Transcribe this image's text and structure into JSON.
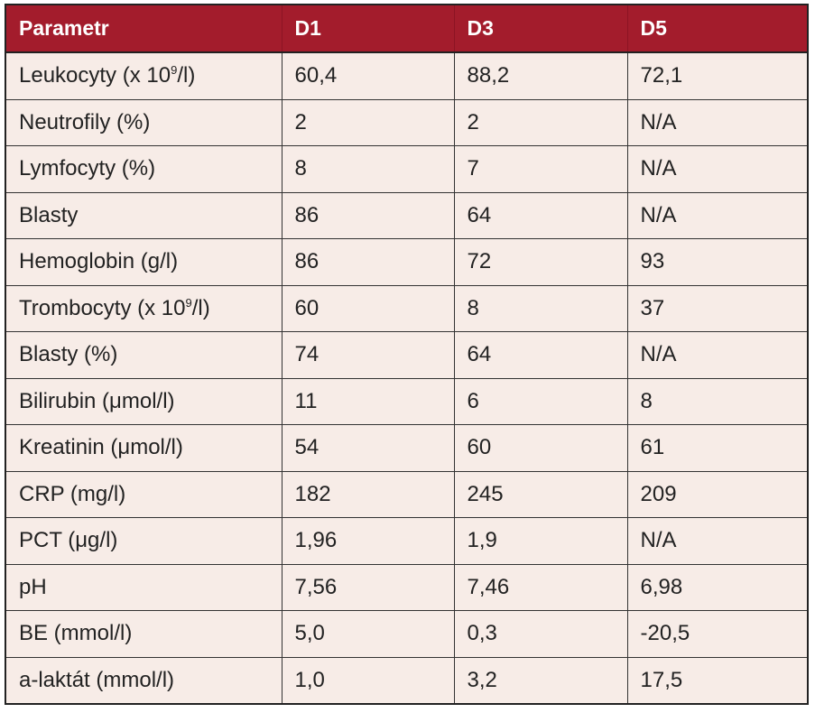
{
  "table": {
    "headers": [
      "Parametr",
      "D1",
      "D3",
      "D5"
    ],
    "rows": [
      {
        "label_pre": "Leukocyty (x 10",
        "label_sup": "9",
        "label_post": "/l)",
        "d1": "60,4",
        "d3": "88,2",
        "d5": "72,1"
      },
      {
        "label_pre": "Neutrofily (%)",
        "label_sup": "",
        "label_post": "",
        "d1": "2",
        "d3": "2",
        "d5": "N/A"
      },
      {
        "label_pre": "Lymfocyty (%)",
        "label_sup": "",
        "label_post": "",
        "d1": "8",
        "d3": "7",
        "d5": "N/A"
      },
      {
        "label_pre": "Blasty",
        "label_sup": "",
        "label_post": "",
        "d1": "86",
        "d3": "64",
        "d5": "N/A"
      },
      {
        "label_pre": "Hemoglobin (g/l)",
        "label_sup": "",
        "label_post": "",
        "d1": "86",
        "d3": "72",
        "d5": "93"
      },
      {
        "label_pre": "Trombocyty (x 10",
        "label_sup": "9",
        "label_post": "/l)",
        "d1": "60",
        "d3": "8",
        "d5": "37"
      },
      {
        "label_pre": "Blasty (%)",
        "label_sup": "",
        "label_post": "",
        "d1": "74",
        "d3": "64",
        "d5": "N/A"
      },
      {
        "label_pre": "Bilirubin (μmol/l)",
        "label_sup": "",
        "label_post": "",
        "d1": "11",
        "d3": "6",
        "d5": "8"
      },
      {
        "label_pre": "Kreatinin (μmol/l)",
        "label_sup": "",
        "label_post": "",
        "d1": "54",
        "d3": "60",
        "d5": "61"
      },
      {
        "label_pre": "CRP (mg/l)",
        "label_sup": "",
        "label_post": "",
        "d1": "182",
        "d3": "245",
        "d5": "209"
      },
      {
        "label_pre": "PCT (μg/l)",
        "label_sup": "",
        "label_post": "",
        "d1": "1,96",
        "d3": "1,9",
        "d5": "N/A"
      },
      {
        "label_pre": "pH",
        "label_sup": "",
        "label_post": "",
        "d1": "7,56",
        "d3": "7,46",
        "d5": "6,98"
      },
      {
        "label_pre": "BE (mmol/l)",
        "label_sup": "",
        "label_post": "",
        "d1": "5,0",
        "d3": "0,3",
        "d5": "-20,5"
      },
      {
        "label_pre": "a-laktát (mmol/l)",
        "label_sup": "",
        "label_post": "",
        "d1": "1,0",
        "d3": "3,2",
        "d5": "17,5"
      }
    ]
  },
  "colors": {
    "header_bg": "#a31c2c",
    "header_text": "#ffffff",
    "body_bg": "#f7ece7",
    "grid": "#333333"
  }
}
